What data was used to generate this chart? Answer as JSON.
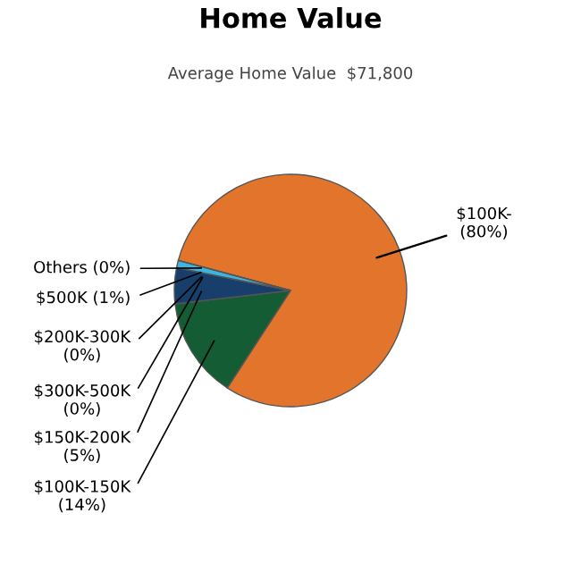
{
  "chart_data": {
    "type": "pie",
    "title": "Home Value",
    "subtitle": "Average Home Value  $71,800",
    "categories": [
      "$100K-",
      "$100K-150K",
      "$150K-200K",
      "$300K-500K",
      "$200K-300K",
      "$500K",
      "Others"
    ],
    "values": [
      80,
      14,
      5,
      0,
      0,
      1,
      0
    ],
    "value_labels": [
      "(80%)",
      "(14%)",
      "(5%)",
      "(0%)",
      "(0%)",
      "(1%)",
      "(0%)"
    ],
    "colors": [
      "#e2752b",
      "#145c33",
      "#183f6b",
      "#7a4a8c",
      "#a0a0a0",
      "#3bb6e0",
      "#c8d84a"
    ]
  }
}
